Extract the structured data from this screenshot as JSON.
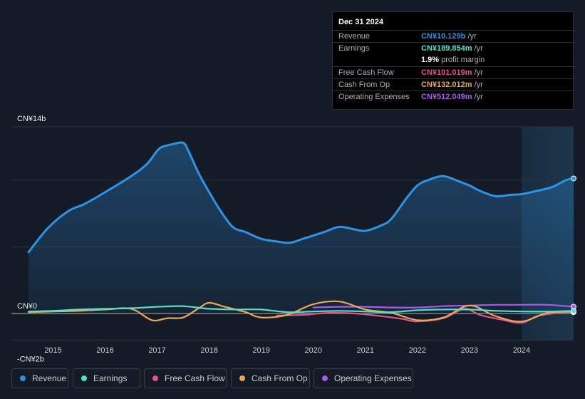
{
  "chart_data": {
    "type": "area",
    "title": "",
    "xlabel": "",
    "ylabel": "",
    "ylim": [
      -2,
      14
    ],
    "y_tick_labels": [
      {
        "value": 14,
        "label": "CN¥14b"
      },
      {
        "value": 0,
        "label": "CN¥0"
      },
      {
        "value": -2,
        "label": "-CN¥2b"
      }
    ],
    "gridlines": [
      14,
      10,
      5,
      0,
      -2
    ],
    "x_ticks": [
      "2015",
      "2016",
      "2017",
      "2018",
      "2019",
      "2020",
      "2021",
      "2022",
      "2023",
      "2024"
    ],
    "x_range": [
      2014.2,
      2025.0
    ],
    "highlight_start": 2024.0,
    "series": [
      {
        "name": "Revenue",
        "color": "#2e93e5",
        "fill": true,
        "points": [
          [
            2014.53,
            4.6
          ],
          [
            2014.9,
            6.4
          ],
          [
            2015.3,
            7.7
          ],
          [
            2015.6,
            8.2
          ],
          [
            2016.0,
            9.1
          ],
          [
            2016.5,
            10.3
          ],
          [
            2016.8,
            11.2
          ],
          [
            2017.0,
            12.2
          ],
          [
            2017.1,
            12.5
          ],
          [
            2017.3,
            12.7
          ],
          [
            2017.5,
            12.8
          ],
          [
            2017.6,
            12.2
          ],
          [
            2017.8,
            10.5
          ],
          [
            2018.0,
            9.1
          ],
          [
            2018.2,
            7.8
          ],
          [
            2018.45,
            6.5
          ],
          [
            2018.7,
            6.1
          ],
          [
            2019.0,
            5.6
          ],
          [
            2019.3,
            5.4
          ],
          [
            2019.55,
            5.3
          ],
          [
            2019.8,
            5.6
          ],
          [
            2020.2,
            6.1
          ],
          [
            2020.5,
            6.5
          ],
          [
            2020.8,
            6.3
          ],
          [
            2021.0,
            6.2
          ],
          [
            2021.3,
            6.6
          ],
          [
            2021.5,
            7.1
          ],
          [
            2021.8,
            8.7
          ],
          [
            2022.0,
            9.6
          ],
          [
            2022.2,
            10.0
          ],
          [
            2022.5,
            10.3
          ],
          [
            2022.8,
            9.9
          ],
          [
            2023.0,
            9.6
          ],
          [
            2023.2,
            9.2
          ],
          [
            2023.5,
            8.8
          ],
          [
            2023.8,
            8.9
          ],
          [
            2024.0,
            8.95
          ],
          [
            2024.3,
            9.2
          ],
          [
            2024.6,
            9.5
          ],
          [
            2024.85,
            10.0
          ],
          [
            2025.0,
            10.129
          ]
        ]
      },
      {
        "name": "Earnings",
        "color": "#55e0c8",
        "fill": false,
        "points": [
          [
            2014.53,
            0.15
          ],
          [
            2015.0,
            0.2
          ],
          [
            2015.5,
            0.3
          ],
          [
            2016.0,
            0.35
          ],
          [
            2016.5,
            0.4
          ],
          [
            2017.0,
            0.5
          ],
          [
            2017.5,
            0.55
          ],
          [
            2018.0,
            0.35
          ],
          [
            2018.5,
            0.3
          ],
          [
            2019.0,
            0.3
          ],
          [
            2019.5,
            0.1
          ],
          [
            2020.0,
            0.15
          ],
          [
            2020.5,
            0.2
          ],
          [
            2021.0,
            0.15
          ],
          [
            2021.5,
            0.1
          ],
          [
            2022.0,
            0.25
          ],
          [
            2022.5,
            0.3
          ],
          [
            2023.0,
            0.3
          ],
          [
            2023.5,
            0.2
          ],
          [
            2024.0,
            0.15
          ],
          [
            2024.5,
            0.15
          ],
          [
            2025.0,
            0.19
          ]
        ]
      },
      {
        "name": "Free Cash Flow",
        "color": "#e0558d",
        "fill": false,
        "points": [
          [
            2019.3,
            -0.15
          ],
          [
            2019.8,
            -0.1
          ],
          [
            2020.3,
            0.05
          ],
          [
            2020.8,
            0.0
          ],
          [
            2021.3,
            -0.2
          ],
          [
            2021.7,
            -0.4
          ],
          [
            2022.0,
            -0.6
          ],
          [
            2022.5,
            -0.35
          ],
          [
            2022.9,
            0.35
          ],
          [
            2023.2,
            -0.1
          ],
          [
            2023.6,
            -0.45
          ],
          [
            2024.0,
            -0.7
          ],
          [
            2024.3,
            -0.2
          ],
          [
            2024.7,
            0.05
          ],
          [
            2025.0,
            0.1
          ]
        ]
      },
      {
        "name": "Cash From Op",
        "color": "#e8a95b",
        "fill": false,
        "points": [
          [
            2014.53,
            0.1
          ],
          [
            2015.0,
            0.15
          ],
          [
            2015.5,
            0.2
          ],
          [
            2016.0,
            0.3
          ],
          [
            2016.5,
            0.35
          ],
          [
            2016.9,
            -0.5
          ],
          [
            2017.2,
            -0.35
          ],
          [
            2017.5,
            -0.3
          ],
          [
            2017.8,
            0.4
          ],
          [
            2018.0,
            0.8
          ],
          [
            2018.3,
            0.5
          ],
          [
            2018.7,
            0.1
          ],
          [
            2019.0,
            -0.3
          ],
          [
            2019.5,
            -0.1
          ],
          [
            2020.0,
            0.7
          ],
          [
            2020.5,
            0.9
          ],
          [
            2021.0,
            0.3
          ],
          [
            2021.5,
            0.05
          ],
          [
            2022.0,
            -0.5
          ],
          [
            2022.5,
            -0.3
          ],
          [
            2023.0,
            0.6
          ],
          [
            2023.5,
            -0.2
          ],
          [
            2024.0,
            -0.6
          ],
          [
            2024.5,
            0.05
          ],
          [
            2025.0,
            0.13
          ]
        ]
      },
      {
        "name": "Operating Expenses",
        "color": "#a95ce8",
        "fill": false,
        "points": [
          [
            2020.0,
            0.45
          ],
          [
            2020.5,
            0.5
          ],
          [
            2021.0,
            0.5
          ],
          [
            2021.5,
            0.45
          ],
          [
            2022.0,
            0.45
          ],
          [
            2022.5,
            0.55
          ],
          [
            2023.0,
            0.6
          ],
          [
            2023.5,
            0.65
          ],
          [
            2024.0,
            0.65
          ],
          [
            2024.5,
            0.65
          ],
          [
            2025.0,
            0.51
          ]
        ]
      }
    ]
  },
  "tooltip": {
    "date": "Dec 31 2024",
    "rows": [
      {
        "label": "Revenue",
        "value": "CN¥10.129b",
        "unit": "/yr",
        "color": "#2e93e5"
      },
      {
        "label": "Earnings",
        "value": "CN¥189.854m",
        "unit": "/yr",
        "color": "#55e0c8"
      },
      {
        "label": "Free Cash Flow",
        "value": "CN¥101.019m",
        "unit": "/yr",
        "color": "#e0558d"
      },
      {
        "label": "Cash From Op",
        "value": "CN¥132.012m",
        "unit": "/yr",
        "color": "#e8a95b"
      },
      {
        "label": "Operating Expenses",
        "value": "CN¥512.049m",
        "unit": "/yr",
        "color": "#a95ce8"
      }
    ],
    "profit_margin_value": "1.9%",
    "profit_margin_label": "profit margin"
  },
  "legend": [
    {
      "label": "Revenue",
      "color": "#2e93e5"
    },
    {
      "label": "Earnings",
      "color": "#55e0c8"
    },
    {
      "label": "Free Cash Flow",
      "color": "#e0558d"
    },
    {
      "label": "Cash From Op",
      "color": "#e8a95b"
    },
    {
      "label": "Operating Expenses",
      "color": "#a95ce8"
    }
  ]
}
